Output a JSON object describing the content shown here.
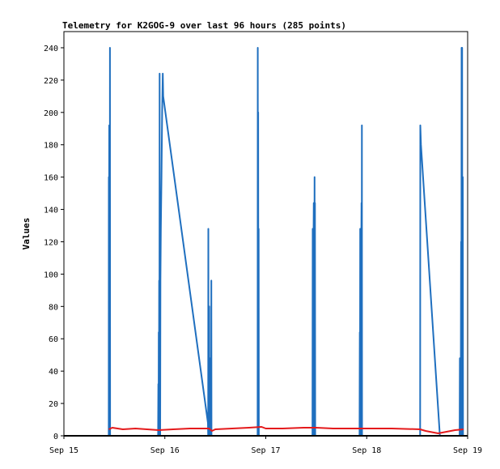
{
  "chart_data": {
    "type": "line",
    "title": "Telemetry for K2GOG-9 over last 96 hours (285 points)",
    "ylabel": "Values",
    "xlabel": "",
    "ylim": [
      0,
      250
    ],
    "y_ticks": [
      0,
      20,
      40,
      60,
      80,
      100,
      120,
      140,
      160,
      180,
      200,
      220,
      240
    ],
    "xlim": [
      0,
      96
    ],
    "x_ticks": [
      {
        "x": 0,
        "label": "Sep 15"
      },
      {
        "x": 24,
        "label": "Sep 16"
      },
      {
        "x": 48,
        "label": "Sep 17"
      },
      {
        "x": 72,
        "label": "Sep 18"
      },
      {
        "x": 96,
        "label": "Sep 19"
      }
    ],
    "grid": false,
    "series": [
      {
        "color": "#1f6fbf",
        "points": [
          [
            10.65,
            0
          ],
          [
            10.68,
            160
          ],
          [
            10.72,
            0
          ],
          [
            10.78,
            192
          ],
          [
            10.82,
            0
          ],
          [
            10.86,
            176
          ],
          [
            10.9,
            0
          ],
          [
            10.95,
            240
          ],
          [
            10.99,
            0
          ],
          [
            22.4,
            0
          ],
          [
            22.45,
            32
          ],
          [
            22.5,
            0
          ],
          [
            22.55,
            64
          ],
          [
            22.6,
            0
          ],
          [
            22.65,
            96
          ],
          [
            22.7,
            0
          ],
          [
            22.76,
            224
          ],
          [
            22.8,
            0
          ],
          [
            22.86,
            40
          ],
          [
            22.9,
            0
          ],
          [
            22.96,
            96
          ],
          [
            23.05,
            128
          ],
          [
            23.2,
            160
          ],
          [
            23.35,
            200
          ],
          [
            23.5,
            224
          ],
          [
            23.6,
            210
          ],
          [
            34.25,
            8
          ],
          [
            34.3,
            0
          ],
          [
            34.35,
            128
          ],
          [
            34.4,
            0
          ],
          [
            34.45,
            64
          ],
          [
            34.5,
            0
          ],
          [
            34.55,
            80
          ],
          [
            34.6,
            0
          ],
          [
            34.7,
            40
          ],
          [
            34.8,
            0
          ],
          [
            34.85,
            48
          ],
          [
            34.9,
            0
          ],
          [
            35.0,
            0
          ],
          [
            35.05,
            96
          ],
          [
            35.1,
            0
          ],
          [
            46.05,
            0
          ],
          [
            46.1,
            240
          ],
          [
            46.15,
            0
          ],
          [
            46.2,
            200
          ],
          [
            46.25,
            0
          ],
          [
            46.3,
            128
          ],
          [
            46.35,
            0
          ],
          [
            59.1,
            0
          ],
          [
            59.15,
            128
          ],
          [
            59.2,
            0
          ],
          [
            59.3,
            96
          ],
          [
            59.4,
            144
          ],
          [
            59.5,
            0
          ],
          [
            59.6,
            160
          ],
          [
            59.65,
            0
          ],
          [
            59.7,
            144
          ],
          [
            59.75,
            0
          ],
          [
            70.3,
            0
          ],
          [
            70.35,
            64
          ],
          [
            70.4,
            0
          ],
          [
            70.45,
            128
          ],
          [
            70.5,
            0
          ],
          [
            70.55,
            56
          ],
          [
            70.6,
            0
          ],
          [
            70.7,
            112
          ],
          [
            70.75,
            144
          ],
          [
            70.8,
            0
          ],
          [
            70.85,
            192
          ],
          [
            70.9,
            0
          ],
          [
            84.7,
            0
          ],
          [
            84.75,
            192
          ],
          [
            84.9,
            180
          ],
          [
            89.4,
            0
          ],
          [
            94.1,
            0
          ],
          [
            94.15,
            48
          ],
          [
            94.2,
            0
          ],
          [
            94.3,
            24
          ],
          [
            94.35,
            0
          ],
          [
            94.45,
            120
          ],
          [
            94.5,
            0
          ],
          [
            94.55,
            240
          ],
          [
            94.6,
            0
          ],
          [
            94.7,
            240
          ],
          [
            94.75,
            0
          ],
          [
            94.85,
            160
          ],
          [
            94.9,
            0
          ]
        ]
      },
      {
        "color": "#e41a1c",
        "points": [
          [
            10.65,
            4
          ],
          [
            11.5,
            5
          ],
          [
            14,
            4
          ],
          [
            17,
            4.5
          ],
          [
            22.5,
            3.5
          ],
          [
            26,
            4
          ],
          [
            30,
            4.5
          ],
          [
            34.5,
            4.5
          ],
          [
            35.2,
            3
          ],
          [
            36,
            4
          ],
          [
            40,
            4.5
          ],
          [
            44,
            5
          ],
          [
            47,
            5.5
          ],
          [
            48,
            4.5
          ],
          [
            52,
            4.5
          ],
          [
            57,
            5
          ],
          [
            60,
            5
          ],
          [
            64,
            4.5
          ],
          [
            70,
            4.5
          ],
          [
            74,
            4.5
          ],
          [
            78,
            4.5
          ],
          [
            84.7,
            4
          ],
          [
            86,
            3
          ],
          [
            89,
            1.5
          ],
          [
            91,
            2.5
          ],
          [
            93,
            3.5
          ],
          [
            95,
            4
          ]
        ]
      },
      {
        "color": "#000000",
        "points": [
          [
            0,
            0
          ],
          [
            96,
            0
          ]
        ]
      }
    ]
  }
}
